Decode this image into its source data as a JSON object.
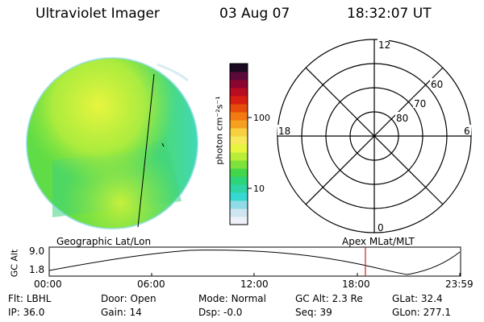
{
  "header": {
    "title": "Ultraviolet Imager",
    "date": "03 Aug 07",
    "time": "18:32:07 UT"
  },
  "colorbar": {
    "unit_label": "photon cm⁻²s⁻¹",
    "ticks": [
      "100",
      "10"
    ],
    "scale": "log",
    "colors": [
      "#eef2f8",
      "#cfe6f0",
      "#8fdbe6",
      "#38d8d2",
      "#2fd4a4",
      "#2ed47a",
      "#44d64a",
      "#7fe23c",
      "#b8ee3a",
      "#e6f53e",
      "#f7e85a",
      "#f6d040",
      "#f6a020",
      "#f27a10",
      "#e64c0a",
      "#d81e10",
      "#b80c20",
      "#8a0630",
      "#5c0838",
      "#1a0a22"
    ]
  },
  "polar_plot": {
    "clock_labels": [
      "12",
      "18",
      "6",
      "0"
    ],
    "latitude_labels": [
      "60",
      "70",
      "80"
    ]
  },
  "timeline": {
    "left_caption": "Geographic Lat/Lon",
    "right_caption": "Apex MLat/MLT",
    "y_axis_label": "GC Alt",
    "y_ticks": [
      "9.0",
      "1.8"
    ],
    "x_ticks": [
      "00:00",
      "06:00",
      "12:00",
      "18:00",
      "23:59"
    ],
    "marker_color": "#cc2222"
  },
  "status": {
    "row1": [
      {
        "key": "Flt:",
        "value": "LBHL"
      },
      {
        "key": "Door:",
        "value": "Open"
      },
      {
        "key": "Mode:",
        "value": "Normal"
      },
      {
        "key": "GC Alt:",
        "value": "2.3 Re"
      },
      {
        "key": "GLat:",
        "value": "32.4"
      }
    ],
    "row2": [
      {
        "key": "IP:",
        "value": "36.0"
      },
      {
        "key": "Gain:",
        "value": "14"
      },
      {
        "key": "Dsp:",
        "value": "-0.0"
      },
      {
        "key": "Seq:",
        "value": "39"
      },
      {
        "key": "GLon:",
        "value": "277.1"
      }
    ]
  }
}
